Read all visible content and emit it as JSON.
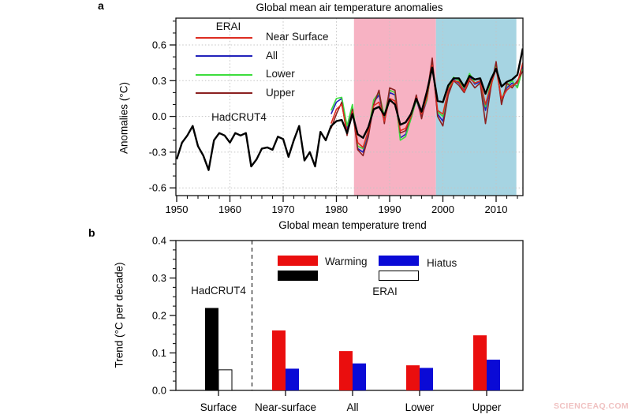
{
  "watermark": "SCIENCEAQ.COM",
  "panel_a": {
    "panel_label": "a",
    "title": "Global mean air temperature anomalies",
    "ylabel": "Anomalies (°C)",
    "legend_group_label": "ERAI",
    "obs_label": "HadCRUT4"
  },
  "panel_b": {
    "panel_label": "b",
    "title": "Global mean temperature trend",
    "ylabel": "Trend (°C per decade)",
    "legend": {
      "warming": "Warming",
      "hiatus": "Hiatus",
      "erai": "ERAI",
      "hadcrut4": "HadCRUT4"
    }
  },
  "chart_data": [
    {
      "type": "line",
      "title": "Global mean air temperature anomalies",
      "xlabel": "",
      "ylabel": "Anomalies (°C)",
      "xlim": [
        1950,
        2015
      ],
      "ylim": [
        -0.66,
        0.82
      ],
      "xticks": [
        1950,
        1960,
        1970,
        1980,
        1990,
        2000,
        2010
      ],
      "yticks": [
        -0.6,
        -0.3,
        0.0,
        0.3,
        0.6
      ],
      "grid": true,
      "legend_position": "upper-left-inside",
      "shaded_regions": [
        {
          "name": "warming-period",
          "x0": 1983.3,
          "x1": 1998.7,
          "color": "#f7b2c3"
        },
        {
          "name": "hiatus-period",
          "x0": 1998.7,
          "x1": 2013.8,
          "color": "#a6d4e2"
        }
      ],
      "series": [
        {
          "name": "HadCRUT4",
          "color": "#000000",
          "line_width": 2.4,
          "x_start": 1950,
          "values": [
            -0.36,
            -0.22,
            -0.16,
            -0.08,
            -0.25,
            -0.33,
            -0.45,
            -0.2,
            -0.14,
            -0.16,
            -0.22,
            -0.14,
            -0.16,
            -0.14,
            -0.42,
            -0.36,
            -0.27,
            -0.26,
            -0.28,
            -0.17,
            -0.19,
            -0.34,
            -0.2,
            -0.08,
            -0.37,
            -0.3,
            -0.42,
            -0.13,
            -0.2,
            -0.08,
            -0.04,
            -0.03,
            -0.14,
            0.02,
            -0.15,
            -0.18,
            -0.09,
            0.06,
            0.08,
            0.01,
            0.14,
            0.1,
            -0.07,
            -0.05,
            0.02,
            0.15,
            0.04,
            0.21,
            0.41,
            0.13,
            0.12,
            0.26,
            0.32,
            0.32,
            0.25,
            0.34,
            0.31,
            0.32,
            0.19,
            0.31,
            0.4,
            0.25,
            0.29,
            0.31,
            0.35,
            0.57
          ]
        },
        {
          "name": "Near Surface",
          "color": "#dd2c20",
          "line_width": 1.6,
          "x_start": 1979,
          "values": [
            -0.06,
            0.06,
            0.1,
            -0.13,
            0.04,
            -0.22,
            -0.26,
            -0.12,
            0.09,
            0.12,
            -0.04,
            0.15,
            0.13,
            -0.12,
            -0.1,
            0.0,
            0.16,
            0.02,
            0.16,
            0.43,
            0.05,
            0.02,
            0.22,
            0.3,
            0.29,
            0.21,
            0.32,
            0.28,
            0.3,
            0.1,
            0.26,
            0.4,
            0.15,
            0.22,
            0.26,
            0.28,
            0.45
          ]
        },
        {
          "name": "All",
          "color": "#2222bb",
          "line_width": 1.6,
          "x_start": 1979,
          "values": [
            0.02,
            0.12,
            0.15,
            -0.1,
            0.08,
            -0.27,
            -0.3,
            -0.14,
            0.12,
            0.18,
            -0.02,
            0.2,
            0.18,
            -0.18,
            -0.15,
            -0.02,
            0.14,
            0.0,
            0.14,
            0.45,
            0.02,
            -0.04,
            0.2,
            0.31,
            0.28,
            0.22,
            0.34,
            0.27,
            0.29,
            0.05,
            0.27,
            0.43,
            0.12,
            0.24,
            0.28,
            0.25,
            0.42
          ]
        },
        {
          "name": "Lower",
          "color": "#3ddd3d",
          "line_width": 1.6,
          "x_start": 1979,
          "values": [
            0.05,
            0.15,
            0.16,
            -0.08,
            0.1,
            -0.25,
            -0.27,
            -0.12,
            0.14,
            0.2,
            0.0,
            0.22,
            0.2,
            -0.2,
            -0.17,
            -0.02,
            0.14,
            0.02,
            0.14,
            0.44,
            0.04,
            0.0,
            0.22,
            0.33,
            0.3,
            0.24,
            0.36,
            0.28,
            0.3,
            0.08,
            0.3,
            0.42,
            0.14,
            0.26,
            0.3,
            0.24,
            0.4
          ]
        },
        {
          "name": "Upper",
          "color": "#8b2020",
          "line_width": 1.6,
          "x_start": 1979,
          "values": [
            -0.1,
            0.02,
            0.12,
            -0.16,
            0.06,
            -0.28,
            -0.33,
            -0.17,
            0.1,
            0.22,
            -0.06,
            0.24,
            0.22,
            -0.14,
            -0.12,
            0.0,
            0.18,
            -0.02,
            0.18,
            0.49,
            0.0,
            -0.08,
            0.18,
            0.3,
            0.26,
            0.2,
            0.3,
            0.24,
            0.28,
            -0.06,
            0.24,
            0.46,
            0.1,
            0.28,
            0.24,
            0.3,
            0.38
          ]
        }
      ]
    },
    {
      "type": "bar",
      "title": "Global mean temperature trend",
      "xlabel": "",
      "ylabel": "Trend (°C per decade)",
      "ylim": [
        0,
        0.4
      ],
      "yticks": [
        0.0,
        0.1,
        0.2,
        0.3,
        0.4
      ],
      "grid": false,
      "categories": [
        "Surface",
        "Near-surface",
        "All",
        "Lower",
        "Upper"
      ],
      "group_labels": {
        "observation": "HadCRUT4",
        "reanalysis": "ERAI"
      },
      "series": [
        {
          "name": "Warming",
          "values": [
            0.22,
            0.16,
            0.105,
            0.067,
            0.147
          ],
          "colors": [
            "#000000",
            "#ea0e0e",
            "#ea0e0e",
            "#ea0e0e",
            "#ea0e0e"
          ]
        },
        {
          "name": "Hiatus",
          "values": [
            0.055,
            0.058,
            0.072,
            0.06,
            0.082
          ],
          "colors": [
            "#ffffff",
            "#0a0ad6",
            "#0a0ad6",
            "#0a0ad6",
            "#0a0ad6"
          ]
        }
      ]
    }
  ]
}
